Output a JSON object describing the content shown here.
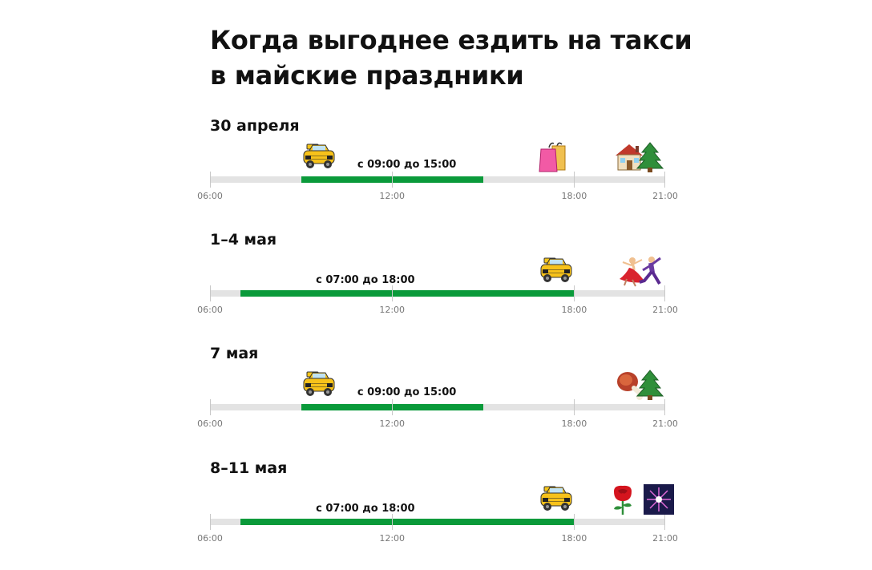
{
  "title": {
    "line1": "Когда выгоднее ездить на такси",
    "line2": "в майские праздники"
  },
  "axis": {
    "start_hour": 6,
    "end_hour": 21,
    "ticks": [
      {
        "hour": 6,
        "label": "06:00"
      },
      {
        "hour": 12,
        "label": "12:00"
      },
      {
        "hour": 18,
        "label": "18:00"
      },
      {
        "hour": 21,
        "label": "21:00"
      }
    ]
  },
  "colors": {
    "range": "#0a9a3a",
    "track": "#e3e3e3"
  },
  "rows": [
    {
      "date": "30 апреля",
      "range_start": 9,
      "range_end": 15,
      "range_label": "с 09:00 до 15:00",
      "emojis": [
        {
          "icon": "taxi-icon",
          "hour": 9.6
        },
        {
          "icon": "shopping-bags-icon",
          "hour": 17.3
        },
        {
          "icon": "house-icon",
          "hour": 19.8
        },
        {
          "icon": "christmas-tree-icon",
          "hour": 20.5
        }
      ]
    },
    {
      "date": "1–4 мая",
      "range_start": 7,
      "range_end": 18,
      "range_label": "с 07:00 до 18:00",
      "emojis": [
        {
          "icon": "taxi-icon",
          "hour": 17.4
        },
        {
          "icon": "dancer-woman-icon",
          "hour": 19.9
        },
        {
          "icon": "dancer-man-icon",
          "hour": 20.5
        }
      ]
    },
    {
      "date": "7 мая",
      "range_start": 9,
      "range_end": 15,
      "range_label": "с 09:00 до 15:00",
      "emojis": [
        {
          "icon": "taxi-icon",
          "hour": 9.6
        },
        {
          "icon": "meat-on-bone-icon",
          "hour": 19.9
        },
        {
          "icon": "christmas-tree-icon",
          "hour": 20.5
        }
      ]
    },
    {
      "date": "8–11 мая",
      "range_start": 7,
      "range_end": 18,
      "range_label": "с 07:00 до 18:00",
      "emojis": [
        {
          "icon": "taxi-icon",
          "hour": 17.4
        },
        {
          "icon": "rose-icon",
          "hour": 19.6
        },
        {
          "icon": "fireworks-icon",
          "hour": 20.8
        }
      ]
    }
  ]
}
